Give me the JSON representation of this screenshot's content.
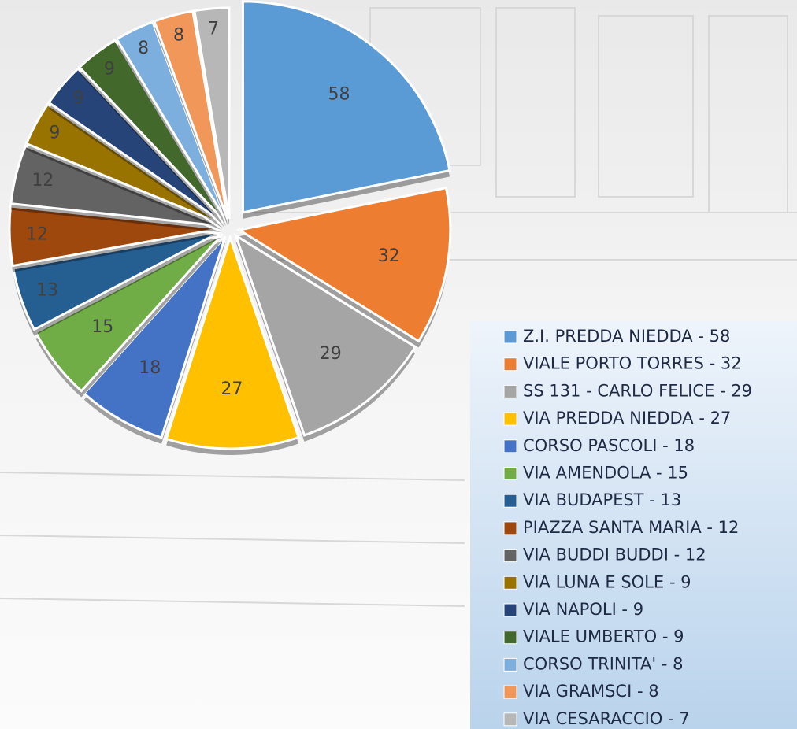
{
  "chart_data": {
    "type": "pie",
    "categories": [
      "Z.I. PREDDA NIEDDA - 58",
      "VIALE PORTO TORRES - 32",
      "SS 131 - CARLO FELICE - 29",
      "VIA PREDDA NIEDDA - 27",
      "CORSO PASCOLI - 18",
      "VIA AMENDOLA - 15",
      "VIA BUDAPEST - 13",
      "PIAZZA SANTA MARIA - 12",
      "VIA BUDDI BUDDI - 12",
      "VIA LUNA E SOLE - 9",
      "VIA NAPOLI - 9",
      "VIALE UMBERTO - 9",
      "CORSO TRINITA' - 8",
      "VIA GRAMSCI - 8",
      "VIA CESARACCIO - 7"
    ],
    "values": [
      58,
      32,
      29,
      27,
      18,
      15,
      13,
      12,
      12,
      9,
      9,
      9,
      8,
      8,
      7
    ],
    "colors": [
      "#5b9bd5",
      "#ed7d31",
      "#a5a5a5",
      "#ffc000",
      "#4472c4",
      "#70ad47",
      "#255e91",
      "#9e480e",
      "#636363",
      "#997300",
      "#264478",
      "#43682b",
      "#7cafdd",
      "#f1975a",
      "#b7b7b7"
    ],
    "legend": "right"
  }
}
